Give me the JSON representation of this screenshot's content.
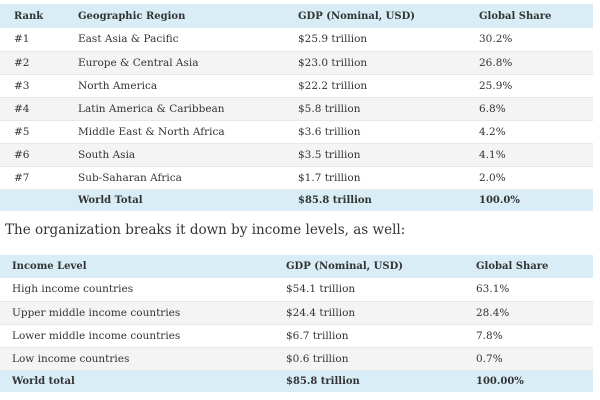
{
  "region_table": {
    "headers": [
      "Rank",
      "Geographic Region",
      "GDP (Nominal, USD)",
      "Global Share"
    ],
    "rows": [
      {
        "rank": "#1",
        "region": "East Asia & Pacific",
        "gdp": "$25.9 trillion",
        "share": "30.2%"
      },
      {
        "rank": "#2",
        "region": "Europe & Central Asia",
        "gdp": "$23.0 trillion",
        "share": "26.8%"
      },
      {
        "rank": "#3",
        "region": "North America",
        "gdp": "$22.2 trillion",
        "share": "25.9%"
      },
      {
        "rank": "#4",
        "region": "Latin America & Caribbean",
        "gdp": "$5.8 trillion",
        "share": "6.8%"
      },
      {
        "rank": "#5",
        "region": "Middle East & North Africa",
        "gdp": "$3.6 trillion",
        "share": "4.2%"
      },
      {
        "rank": "#6",
        "region": "South Asia",
        "gdp": "$3.5 trillion",
        "share": "4.1%"
      },
      {
        "rank": "#7",
        "region": "Sub-Saharan Africa",
        "gdp": "$1.7 trillion",
        "share": "2.0%"
      }
    ],
    "total": {
      "rank": "",
      "label": "World Total",
      "gdp": "$85.8 trillion",
      "share": "100.0%"
    }
  },
  "intro_text": "The organization breaks it down by income levels, as well:",
  "income_table": {
    "headers": [
      "Income Level",
      "GDP (Nominal, USD)",
      "Global Share"
    ],
    "rows": [
      {
        "level": "High income countries",
        "gdp": "$54.1 trillion",
        "share": "63.1%"
      },
      {
        "level": "Upper middle income countries",
        "gdp": "$24.4 trillion",
        "share": "28.4%"
      },
      {
        "level": "Lower middle income countries",
        "gdp": "$6.7 trillion",
        "share": "7.8%"
      },
      {
        "level": "Low income countries",
        "gdp": "$0.6 trillion",
        "share": "0.7%"
      }
    ],
    "total": {
      "label": "World total",
      "gdp": "$85.8 trillion",
      "share": "100.00%"
    }
  },
  "colors": {
    "header_bg": "#d9edf7",
    "stripe_bg": "#f4f4f4",
    "text": "#333333"
  }
}
